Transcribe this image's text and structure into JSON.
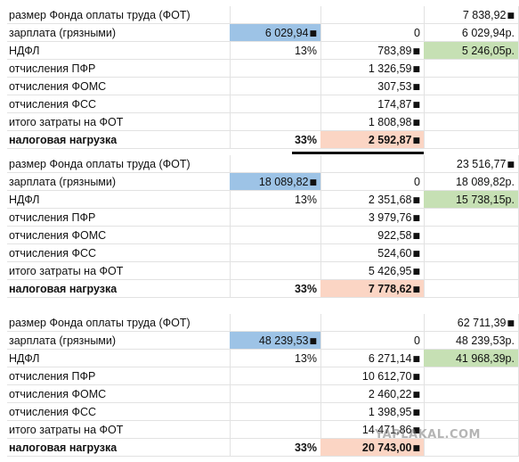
{
  "glyph": "■",
  "watermark": "YAPLAKAL.COM",
  "blocks": [
    {
      "rows": [
        {
          "label": "размер Фонда оплаты труда (ФОТ)",
          "c2": "",
          "c3": "",
          "c4": "7 838,92",
          "c4_glyph": true
        },
        {
          "label": "зарплата (грязными)",
          "c2": "6 029,94",
          "c2_glyph": true,
          "c3": "0",
          "c4": "6 029,94р."
        },
        {
          "label": "НДФЛ",
          "c2": "13%",
          "c3": "783,89",
          "c3_glyph": true,
          "c4": "5 246,05р."
        },
        {
          "label": "отчисления ПФР",
          "c2": "",
          "c3": "1 326,59",
          "c3_glyph": true,
          "c4": ""
        },
        {
          "label": "отчисления ФОМС",
          "c2": "",
          "c3": "307,53",
          "c3_glyph": true,
          "c4": ""
        },
        {
          "label": "отчисления ФСС",
          "c2": "",
          "c3": "174,87",
          "c3_glyph": true,
          "c4": ""
        },
        {
          "label": "итого затраты на ФОТ",
          "c2": "",
          "c3": "1 808,98",
          "c3_glyph": true,
          "c4": ""
        },
        {
          "label": "налоговая нагрузка",
          "c2": "33%",
          "c3": "2 592,87",
          "c3_glyph": true,
          "c4": "",
          "bold": true
        }
      ]
    },
    {
      "rows": [
        {
          "label": "размер Фонда оплаты труда (ФОТ)",
          "c2": "",
          "c3": "",
          "c4": "23 516,77",
          "c4_glyph": true
        },
        {
          "label": "зарплата (грязными)",
          "c2": "18 089,82",
          "c2_glyph": true,
          "c3": "0",
          "c4": "18 089,82р."
        },
        {
          "label": "НДФЛ",
          "c2": "13%",
          "c3": "2 351,68",
          "c3_glyph": true,
          "c4": "15 738,15р."
        },
        {
          "label": "отчисления ПФР",
          "c2": "",
          "c3": "3 979,76",
          "c3_glyph": true,
          "c4": ""
        },
        {
          "label": "отчисления ФОМС",
          "c2": "",
          "c3": "922,58",
          "c3_glyph": true,
          "c4": ""
        },
        {
          "label": "отчисления ФСС",
          "c2": "",
          "c3": "524,60",
          "c3_glyph": true,
          "c4": ""
        },
        {
          "label": "итого затраты на ФОТ",
          "c2": "",
          "c3": "5 426,95",
          "c3_glyph": true,
          "c4": ""
        },
        {
          "label": "налоговая нагрузка",
          "c2": "33%",
          "c3": "7 778,62",
          "c3_glyph": true,
          "c4": "",
          "bold": true
        }
      ]
    },
    {
      "rows": [
        {
          "label": "размер Фонда оплаты труда (ФОТ)",
          "c2": "",
          "c3": "",
          "c4": "62 711,39",
          "c4_glyph": true
        },
        {
          "label": "зарплата (грязными)",
          "c2": "48 239,53",
          "c2_glyph": true,
          "c3": "0",
          "c4": "48 239,53р."
        },
        {
          "label": "НДФЛ",
          "c2": "13%",
          "c3": "6 271,14",
          "c3_glyph": true,
          "c4": "41 968,39р."
        },
        {
          "label": "отчисления ПФР",
          "c2": "",
          "c3": "10 612,70",
          "c3_glyph": true,
          "c4": ""
        },
        {
          "label": "отчисления ФОМС",
          "c2": "",
          "c3": "2 460,22",
          "c3_glyph": true,
          "c4": ""
        },
        {
          "label": "отчисления ФСС",
          "c2": "",
          "c3": "1 398,95",
          "c3_glyph": true,
          "c4": ""
        },
        {
          "label": "итого затраты на ФОТ",
          "c2": "",
          "c3": "14 471,86",
          "c3_glyph": true,
          "c4": ""
        },
        {
          "label": "налоговая нагрузка",
          "c2": "33%",
          "c3": "20 743,00",
          "c3_glyph": true,
          "c4": "",
          "bold": true
        }
      ]
    }
  ]
}
